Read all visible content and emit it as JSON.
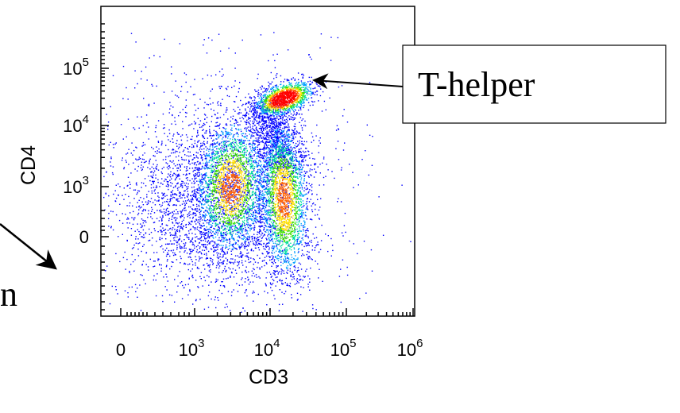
{
  "chart_data": {
    "type": "scatter",
    "plot_style": "flow cytometry density dot plot",
    "xlabel": "CD3",
    "ylabel": "CD4",
    "x_scale": "biexponential",
    "y_scale": "biexponential",
    "x_ticks": [
      {
        "base": "0",
        "exp": ""
      },
      {
        "base": "10",
        "exp": "3"
      },
      {
        "base": "10",
        "exp": "4"
      },
      {
        "base": "10",
        "exp": "5"
      },
      {
        "base": "10",
        "exp": "6"
      }
    ],
    "y_ticks": [
      {
        "base": "0",
        "exp": ""
      },
      {
        "base": "10",
        "exp": "3"
      },
      {
        "base": "10",
        "exp": "4"
      },
      {
        "base": "10",
        "exp": "5"
      }
    ],
    "populations": [
      {
        "cd3": 15000,
        "cd4": 30000,
        "density": "highest"
      },
      {
        "cd3": 3000,
        "cd4": 1000,
        "density": "high"
      },
      {
        "cd3": 15000,
        "cd4": 200,
        "density": "high"
      }
    ],
    "density_colors": [
      "#0000ff",
      "#00a0ff",
      "#00e0a0",
      "#40e000",
      "#ffe000",
      "#ff6000",
      "#ff0000"
    ],
    "annotations": [
      {
        "text": "T-helper"
      },
      {
        "text": "n"
      }
    ],
    "grid": false,
    "legend": false
  }
}
